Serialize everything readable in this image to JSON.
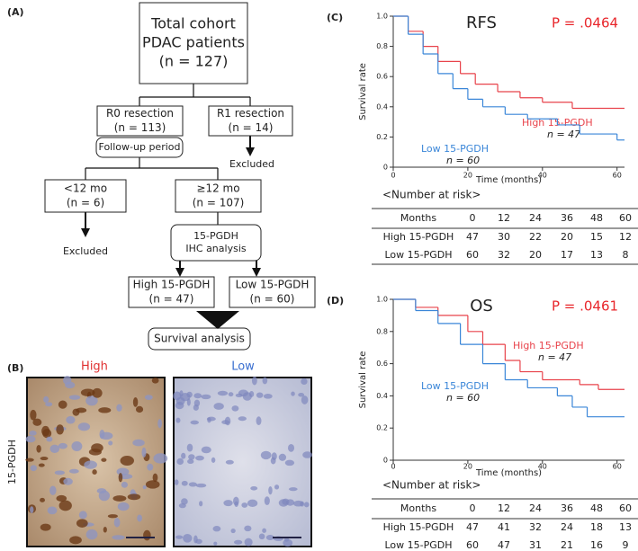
{
  "flowchart": {
    "label": "(A)",
    "nodes": [
      [
        "Total cohort",
        "PDAC patients",
        "(n = 127)"
      ],
      [
        "R0 resection",
        "(n = 113)"
      ],
      [
        "R1 resection",
        "(n = 14)"
      ],
      [
        "Follow-up period"
      ],
      [
        "<12 mo",
        "(n = 6)"
      ],
      [
        "≥12 mo",
        "(n = 107)"
      ],
      [
        "15-PGDH",
        "IHC analysis"
      ],
      [
        "High 15-PGDH",
        "(n = 47)"
      ],
      [
        "Low 15-PGDH",
        "(n = 60)"
      ],
      [
        "Survival analysis"
      ]
    ],
    "excluded": [
      "Excluded",
      "Excluded"
    ]
  },
  "micrographs": {
    "label": "(B)",
    "row_label": "15-PGDH",
    "columns": [
      "High",
      "Low"
    ]
  },
  "chart_data": [
    {
      "type": "line",
      "step": true,
      "panel": "(C)",
      "title": "RFS",
      "p_value": "P = .0464",
      "x_label": "Time (months)",
      "y_label": "Survival rate",
      "xlim": [
        0,
        62
      ],
      "xticks": [
        0,
        20,
        40,
        60
      ],
      "ylim": [
        0,
        1
      ],
      "yticks": [
        0,
        0.2,
        0.4,
        0.6,
        0.8,
        {
          "value": 1,
          "label": "1.0"
        }
      ],
      "series": [
        {
          "name": "High 15-PGDH",
          "n_label": "n = 47",
          "color": "#e8434b",
          "x": [
            0,
            4,
            8,
            12,
            18,
            22,
            28,
            34,
            40,
            48,
            62
          ],
          "values": [
            1,
            0.9,
            0.8,
            0.7,
            0.62,
            0.55,
            0.5,
            0.46,
            0.43,
            0.39,
            0.39
          ]
        },
        {
          "name": "Low 15-PGDH",
          "n_label": "n = 60",
          "color": "#3a86d8",
          "x": [
            0,
            4,
            8,
            12,
            16,
            20,
            24,
            30,
            36,
            44,
            50,
            60,
            62
          ],
          "values": [
            1,
            0.88,
            0.75,
            0.62,
            0.52,
            0.45,
            0.4,
            0.35,
            0.32,
            0.28,
            0.22,
            0.18,
            0.18
          ]
        }
      ],
      "risk_table": {
        "title": "<Number at risk>",
        "header": [
          "Months",
          0,
          12,
          24,
          36,
          48,
          60
        ],
        "rows": [
          [
            "High 15-PGDH",
            47,
            30,
            22,
            20,
            15,
            12
          ],
          [
            "Low 15-PGDH",
            60,
            32,
            20,
            17,
            13,
            8
          ]
        ]
      }
    },
    {
      "type": "line",
      "step": true,
      "panel": "(D)",
      "title": "OS",
      "p_value": "P = .0461",
      "x_label": "Time (months)",
      "y_label": "Survival rate",
      "xlim": [
        0,
        62
      ],
      "xticks": [
        0,
        20,
        40,
        60
      ],
      "ylim": [
        0,
        1
      ],
      "yticks": [
        0,
        0.2,
        0.4,
        0.6,
        0.8,
        {
          "value": 1,
          "label": "1.0"
        }
      ],
      "series": [
        {
          "name": "High 15-PGDH",
          "n_label": "n = 47",
          "color": "#e8434b",
          "x": [
            0,
            6,
            12,
            20,
            24,
            30,
            34,
            40,
            50,
            55,
            62
          ],
          "values": [
            1,
            0.95,
            0.9,
            0.8,
            0.72,
            0.62,
            0.55,
            0.5,
            0.47,
            0.44,
            0.44
          ]
        },
        {
          "name": "Low 15-PGDH",
          "n_label": "n = 60",
          "color": "#3a86d8",
          "x": [
            0,
            6,
            12,
            18,
            24,
            30,
            36,
            44,
            48,
            52,
            62
          ],
          "values": [
            1,
            0.93,
            0.85,
            0.72,
            0.6,
            0.5,
            0.45,
            0.4,
            0.33,
            0.27,
            0.27
          ]
        }
      ],
      "risk_table": {
        "title": "<Number at risk>",
        "header": [
          "Months",
          0,
          12,
          24,
          36,
          48,
          60
        ],
        "rows": [
          [
            "High 15-PGDH",
            47,
            41,
            32,
            24,
            18,
            13
          ],
          [
            "Low 15-PGDH",
            60,
            47,
            31,
            21,
            16,
            9
          ]
        ]
      }
    }
  ]
}
